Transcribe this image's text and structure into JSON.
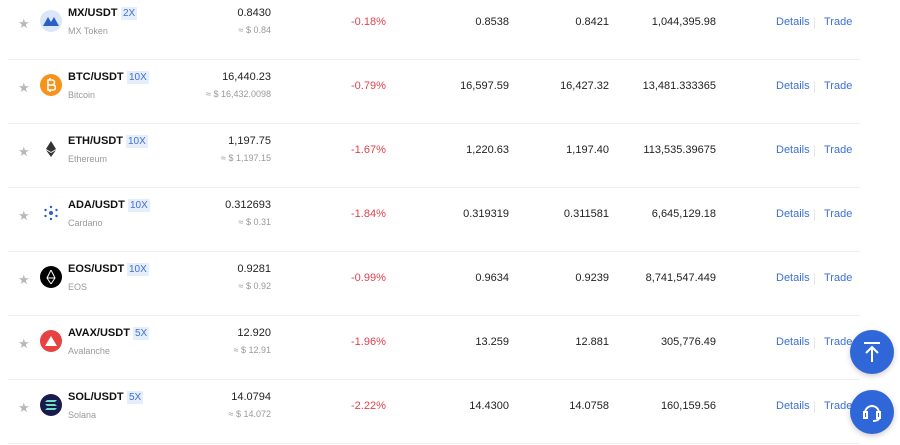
{
  "colors": {
    "accent": "#2f66d8",
    "negative": "#e0414e"
  },
  "rows": [
    {
      "pair": "MX/USDT",
      "leverage": "2X",
      "name": "MX Token",
      "price": "0.8430",
      "usd": "≈ $ 0.84",
      "change": "-0.18%",
      "high": "0.8538",
      "low": "0.8421",
      "volume": "1,044,395.98",
      "icon_color": "#dbe6f8",
      "icon": "mx-logo-icon"
    },
    {
      "pair": "BTC/USDT",
      "leverage": "10X",
      "name": "Bitcoin",
      "price": "16,440.23",
      "usd": "≈ $ 16,432.0098",
      "change": "-0.79%",
      "high": "16,597.59",
      "low": "16,427.32",
      "volume": "13,481.333365",
      "icon_color": "#f7931a",
      "icon": "bitcoin-icon"
    },
    {
      "pair": "ETH/USDT",
      "leverage": "10X",
      "name": "Ethereum",
      "price": "1,197.75",
      "usd": "≈ $ 1,197.15",
      "change": "-1.67%",
      "high": "1,220.63",
      "low": "1,197.40",
      "volume": "113,535.39675",
      "icon_color": "#ffffff",
      "icon": "ethereum-icon"
    },
    {
      "pair": "ADA/USDT",
      "leverage": "10X",
      "name": "Cardano",
      "price": "0.312693",
      "usd": "≈ $ 0.31",
      "change": "-1.84%",
      "high": "0.319319",
      "low": "0.311581",
      "volume": "6,645,129.18",
      "icon_color": "#ffffff",
      "icon": "cardano-icon"
    },
    {
      "pair": "EOS/USDT",
      "leverage": "10X",
      "name": "EOS",
      "price": "0.9281",
      "usd": "≈ $ 0.92",
      "change": "-0.99%",
      "high": "0.9634",
      "low": "0.9239",
      "volume": "8,741,547.449",
      "icon_color": "#000000",
      "icon": "eos-icon"
    },
    {
      "pair": "AVAX/USDT",
      "leverage": "5X",
      "name": "Avalanche",
      "price": "12.920",
      "usd": "≈ $ 12.91",
      "change": "-1.96%",
      "high": "13.259",
      "low": "12.881",
      "volume": "305,776.49",
      "icon_color": "#e84142",
      "icon": "avalanche-icon"
    },
    {
      "pair": "SOL/USDT",
      "leverage": "5X",
      "name": "Solana",
      "price": "14.0794",
      "usd": "≈ $ 14.072",
      "change": "-2.22%",
      "high": "14.4300",
      "low": "14.0758",
      "volume": "160,159.56",
      "icon_color": "#1a1a4e",
      "icon": "solana-icon"
    }
  ],
  "actions": {
    "details": "Details",
    "trade": "Trade"
  }
}
